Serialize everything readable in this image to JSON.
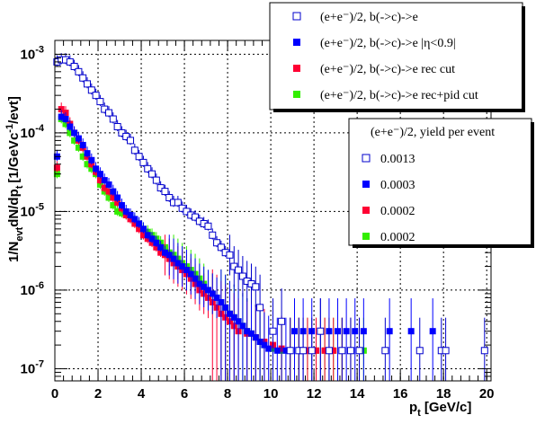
{
  "chart_data": {
    "type": "scatter",
    "x_axis": {
      "label_main": "p",
      "label_sub": "t",
      "label_unit": "[GeV/c]",
      "range": [
        0,
        20.2
      ],
      "tick_labels": [
        "0",
        "2",
        "4",
        "6",
        "8",
        "10",
        "12",
        "14",
        "16",
        "18",
        "20"
      ]
    },
    "y_axis": {
      "label_parts": [
        "1/N",
        "evt",
        "dN/dp",
        "t",
        "[1/GeVc",
        "-1",
        "/evt]"
      ],
      "scale": "log",
      "range": [
        7e-08,
        0.0015
      ],
      "tick_labels": [
        {
          "base": "10",
          "exp": "-7"
        },
        {
          "base": "10",
          "exp": "-6"
        },
        {
          "base": "10",
          "exp": "-5"
        },
        {
          "base": "10",
          "exp": "-4"
        },
        {
          "base": "10",
          "exp": "-3"
        }
      ]
    },
    "grid": true,
    "legend_top": {
      "placement": "top-right",
      "entries": [
        {
          "label": "(e+e⁻)/2, b(->c)->e",
          "marker": "open-square",
          "color": "#0000cc"
        },
        {
          "label": "(e+e⁻)/2, b(->c)->e |η<0.9|",
          "marker": "filled-square",
          "color": "#0000ff"
        },
        {
          "label": "(e+e⁻)/2, b(->c)->e rec cut",
          "marker": "filled-square",
          "color": "#ff0033"
        },
        {
          "label": "(e+e⁻)/2, b(->c)->e rec+pid cut",
          "marker": "filled-square",
          "color": "#33ee00"
        }
      ]
    },
    "legend_yield": {
      "placement": "right",
      "title": "(e+e⁻)/2, yield per event",
      "entries": [
        {
          "label": "0.0013",
          "marker": "open-square",
          "color": "#0000cc"
        },
        {
          "label": "0.0003",
          "marker": "filled-square",
          "color": "#0000ff"
        },
        {
          "label": "0.0002",
          "marker": "filled-square",
          "color": "#ff0033"
        },
        {
          "label": "0.0002",
          "marker": "filled-square",
          "color": "#33ee00"
        }
      ]
    },
    "series": [
      {
        "marker": "open-square",
        "color": "#0000cc",
        "x": [
          0.1,
          0.3,
          0.5,
          0.7,
          0.9,
          1.1,
          1.3,
          1.5,
          1.7,
          1.9,
          2.1,
          2.3,
          2.5,
          2.7,
          2.9,
          3.1,
          3.3,
          3.5,
          3.7,
          3.9,
          4.1,
          4.3,
          4.5,
          4.7,
          4.9,
          5.1,
          5.3,
          5.5,
          5.7,
          5.9,
          6.1,
          6.3,
          6.5,
          6.7,
          6.9,
          7.1,
          7.3,
          7.5,
          7.7,
          7.9,
          8.1,
          8.3,
          8.5,
          8.7,
          8.9,
          9.1,
          9.3,
          9.5,
          10.1,
          10.5,
          10.9,
          11.3,
          11.5,
          11.9,
          12.3,
          12.7,
          13.3,
          13.7,
          14.1,
          15.3,
          16.9,
          17.9,
          18.1,
          19.9
        ],
        "y": [
          0.0008,
          0.00085,
          0.00085,
          0.0008,
          0.0007,
          0.0006,
          0.0005,
          0.00042,
          0.00035,
          0.0003,
          0.00025,
          0.0002,
          0.00018,
          0.00015,
          0.00012,
          0.0001,
          9e-05,
          8e-05,
          6e-05,
          5e-05,
          4.2e-05,
          3.5e-05,
          3e-05,
          2.5e-05,
          2e-05,
          1.8e-05,
          1.5e-05,
          1.3e-05,
          1.3e-05,
          1.1e-05,
          1e-05,
          9e-06,
          8.5e-06,
          7.5e-06,
          7e-06,
          6.5e-06,
          5e-06,
          4e-06,
          3.5e-06,
          3e-06,
          2.8e-06,
          2e-06,
          1.8e-06,
          1.5e-06,
          1.3e-06,
          1.2e-06,
          1.1e-06,
          6e-07,
          3e-07,
          4e-07,
          1.7e-07,
          1.7e-07,
          1.7e-07,
          1.7e-07,
          3e-07,
          1.7e-07,
          1.7e-07,
          1.7e-07,
          1.7e-07,
          1.7e-07,
          1.7e-07,
          1.7e-07,
          1.7e-07,
          1.7e-07
        ]
      },
      {
        "marker": "filled-square",
        "color": "#0000ff",
        "x": [
          0.1,
          0.3,
          0.5,
          0.7,
          0.9,
          1.1,
          1.3,
          1.5,
          1.7,
          1.9,
          2.1,
          2.3,
          2.5,
          2.7,
          2.9,
          3.1,
          3.3,
          3.5,
          3.7,
          3.9,
          4.1,
          4.3,
          4.5,
          4.7,
          4.9,
          5.1,
          5.3,
          5.5,
          5.7,
          5.9,
          6.1,
          6.3,
          6.5,
          6.7,
          6.9,
          7.1,
          7.3,
          7.5,
          7.7,
          7.9,
          8.1,
          8.3,
          8.5,
          8.7,
          8.9,
          9.1,
          9.3,
          9.5,
          9.7,
          9.9,
          10.3,
          10.7,
          11.1,
          11.5,
          11.9,
          12.3,
          12.7,
          13.1,
          13.5,
          13.9,
          14.3,
          15.5,
          16.5,
          17.5
        ],
        "y": [
          5e-05,
          0.00016,
          0.00015,
          0.00012,
          0.0001,
          8.5e-05,
          7e-05,
          5.5e-05,
          4.5e-05,
          3.5e-05,
          3e-05,
          2.5e-05,
          2.2e-05,
          1.8e-05,
          1.5e-05,
          1.2e-05,
          1e-05,
          9e-06,
          8e-06,
          7e-06,
          6e-06,
          5e-06,
          4.5e-06,
          4e-06,
          3.5e-06,
          3e-06,
          2.8e-06,
          2.5e-06,
          2.2e-06,
          2e-06,
          1.8e-06,
          1.6e-06,
          1.4e-06,
          1.2e-06,
          1.1e-06,
          1e-06,
          9e-07,
          8e-07,
          7e-07,
          6e-07,
          5e-07,
          4.5e-07,
          4e-07,
          3.5e-07,
          3e-07,
          2.8e-07,
          2.5e-07,
          2.2e-07,
          2e-07,
          1.8e-07,
          1.7e-07,
          1.7e-07,
          3e-07,
          3e-07,
          3e-07,
          3e-07,
          3e-07,
          3e-07,
          3e-07,
          3e-07,
          3e-07,
          3e-07,
          3e-07,
          3e-07
        ]
      },
      {
        "marker": "filled-square",
        "color": "#ff0033",
        "x": [
          0.1,
          0.3,
          0.5,
          0.7,
          0.9,
          1.1,
          1.3,
          1.5,
          1.7,
          1.9,
          2.1,
          2.3,
          2.5,
          2.7,
          2.9,
          3.1,
          3.3,
          3.5,
          3.7,
          3.9,
          4.1,
          4.3,
          4.5,
          4.7,
          4.9,
          5.1,
          5.3,
          5.5,
          5.7,
          5.9,
          6.1,
          6.3,
          6.5,
          6.7,
          6.9,
          7.1,
          7.3,
          7.5,
          7.7,
          7.9,
          8.1,
          8.3,
          8.5,
          8.9,
          9.3,
          9.7,
          10.1,
          10.5,
          10.9,
          11.3,
          11.7,
          12.1,
          12.5,
          12.9,
          13.3,
          13.7,
          14.1
        ],
        "y": [
          3.6e-05,
          0.0002,
          0.00018,
          0.00013,
          0.0001,
          8e-05,
          6.5e-05,
          5e-05,
          4e-05,
          3.2e-05,
          2.5e-05,
          2e-05,
          1.8e-05,
          1.5e-05,
          1.3e-05,
          1.1e-05,
          9e-06,
          8e-06,
          7e-06,
          6e-06,
          5e-06,
          4.5e-06,
          4e-06,
          3.5e-06,
          3e-06,
          2.8e-06,
          2.5e-06,
          2.2e-06,
          2e-06,
          1.8e-06,
          1.6e-06,
          1.4e-06,
          1.2e-06,
          1e-06,
          9e-07,
          8e-07,
          7e-07,
          6e-07,
          5e-07,
          4.5e-07,
          4e-07,
          3.5e-07,
          3e-07,
          2.8e-07,
          2.5e-07,
          2.2e-07,
          2e-07,
          1.8e-07,
          1.7e-07,
          1.7e-07,
          1.7e-07,
          1.7e-07,
          1.7e-07,
          1.7e-07,
          1.7e-07,
          1.7e-07,
          1.7e-07
        ]
      },
      {
        "marker": "filled-square",
        "color": "#33ee00",
        "x": [
          0.1,
          0.3,
          0.5,
          0.7,
          0.9,
          1.1,
          1.3,
          1.5,
          1.7,
          1.9,
          2.1,
          2.3,
          2.5,
          2.7,
          2.9,
          3.1,
          3.3,
          3.5,
          3.7,
          3.9,
          4.1,
          4.3,
          4.5,
          4.7,
          4.9,
          5.1,
          5.3,
          5.5,
          5.7,
          5.9,
          6.1,
          6.3,
          6.5,
          6.7,
          6.9,
          7.1,
          7.3,
          7.5,
          7.7,
          7.9,
          8.1,
          8.3,
          8.5,
          8.7,
          8.9,
          9.1,
          9.3,
          9.5,
          9.7,
          10.1,
          10.5,
          10.9,
          11.3,
          11.7,
          12.1,
          12.5,
          12.9,
          13.3,
          13.7,
          14.1,
          14.3
        ],
        "y": [
          3e-05,
          0.00015,
          0.00013,
          0.0001,
          8e-05,
          6.5e-05,
          5e-05,
          4e-05,
          3.5e-05,
          3e-05,
          2.2e-05,
          1.8e-05,
          1.5e-05,
          1.2e-05,
          1e-05,
          9.5e-06,
          9e-06,
          8.5e-06,
          7.5e-06,
          6.5e-06,
          6e-06,
          5.5e-06,
          5e-06,
          4.5e-06,
          4e-06,
          3.5e-06,
          3e-06,
          2.8e-06,
          2.5e-06,
          2.2e-06,
          2e-06,
          1.8e-06,
          1.6e-06,
          1.4e-06,
          1.2e-06,
          1e-06,
          9e-07,
          8e-07,
          7e-07,
          6e-07,
          5e-07,
          4.5e-07,
          4e-07,
          3.5e-07,
          3e-07,
          2.8e-07,
          2.5e-07,
          2.2e-07,
          2e-07,
          1.8e-07,
          1.7e-07,
          1.7e-07,
          1.7e-07,
          1.7e-07,
          1.7e-07,
          1.7e-07,
          1.7e-07,
          1.7e-07,
          1.7e-07,
          1.7e-07,
          1.7e-07
        ]
      }
    ]
  }
}
